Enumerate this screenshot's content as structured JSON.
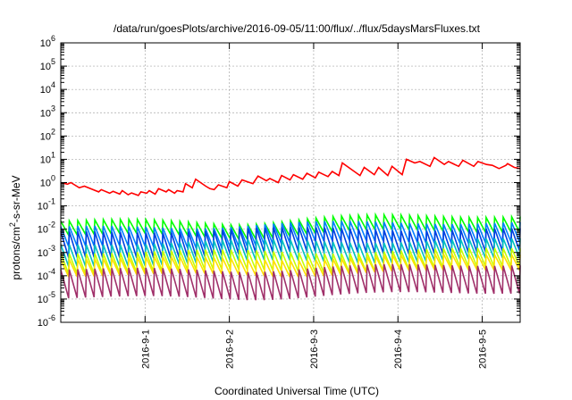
{
  "chart_data": {
    "type": "line",
    "title": "/data/run/goesPlots/archive/2016-09-05/11:00/flux/../flux/5daysMarsFluxes.txt",
    "xlabel": "Coordinated Universal Time (UTC)",
    "ylabel": "protons/cm²-s-sr-MeV",
    "ylabel_parts": {
      "pre": "protons/cm",
      "sup": "2",
      "post": "-s-sr-MeV"
    },
    "x_tick_labels": [
      "2016-9-1",
      "2016-9-2",
      "2016-9-3",
      "2016-9-4",
      "2016-9-5"
    ],
    "xlim_days": [
      0.0,
      5.45
    ],
    "x_tick_days": [
      1,
      2,
      3,
      4,
      5
    ],
    "y_scale": "log",
    "ylim": [
      1e-06,
      1000000.0
    ],
    "y_tick_labels": [
      {
        "base": "10",
        "exp": "-6"
      },
      {
        "base": "10",
        "exp": "-5"
      },
      {
        "base": "10",
        "exp": "-4"
      },
      {
        "base": "10",
        "exp": "-3"
      },
      {
        "base": "10",
        "exp": "-2"
      },
      {
        "base": "10",
        "exp": "-1"
      },
      {
        "base": "10",
        "exp": "0"
      },
      {
        "base": "10",
        "exp": "1"
      },
      {
        "base": "10",
        "exp": "2"
      },
      {
        "base": "10",
        "exp": "3"
      },
      {
        "base": "10",
        "exp": "4"
      },
      {
        "base": "10",
        "exp": "5"
      },
      {
        "base": "10",
        "exp": "6"
      }
    ],
    "grid": true,
    "legend": false,
    "sawtooth_teeth": 54,
    "series": [
      {
        "color": "#ff0000",
        "style": "sawtooth-sparse",
        "points": [
          [
            0.0,
            1.0
          ],
          [
            0.08,
            0.85
          ],
          [
            0.12,
            1.0
          ],
          [
            0.22,
            0.6
          ],
          [
            0.28,
            0.7
          ],
          [
            0.45,
            0.4
          ],
          [
            0.48,
            0.5
          ],
          [
            0.58,
            0.35
          ],
          [
            0.62,
            0.42
          ],
          [
            0.7,
            0.32
          ],
          [
            0.73,
            0.45
          ],
          [
            0.8,
            0.3
          ],
          [
            0.84,
            0.36
          ],
          [
            0.92,
            0.28
          ],
          [
            0.95,
            0.4
          ],
          [
            1.02,
            0.35
          ],
          [
            1.05,
            0.45
          ],
          [
            1.12,
            0.32
          ],
          [
            1.16,
            0.55
          ],
          [
            1.25,
            0.4
          ],
          [
            1.28,
            0.5
          ],
          [
            1.35,
            0.35
          ],
          [
            1.38,
            0.45
          ],
          [
            1.45,
            0.4
          ],
          [
            1.48,
            0.9
          ],
          [
            1.56,
            0.6
          ],
          [
            1.6,
            1.4
          ],
          [
            1.72,
            0.7
          ],
          [
            1.77,
            0.55
          ],
          [
            1.82,
            0.5
          ],
          [
            1.87,
            0.8
          ],
          [
            1.97,
            0.6
          ],
          [
            2.0,
            1.1
          ],
          [
            2.1,
            0.7
          ],
          [
            2.15,
            1.3
          ],
          [
            2.28,
            0.9
          ],
          [
            2.34,
            1.9
          ],
          [
            2.44,
            1.2
          ],
          [
            2.48,
            1.5
          ],
          [
            2.58,
            1.0
          ],
          [
            2.62,
            2.0
          ],
          [
            2.72,
            1.3
          ],
          [
            2.76,
            2.2
          ],
          [
            2.87,
            1.4
          ],
          [
            2.92,
            2.5
          ],
          [
            3.02,
            1.6
          ],
          [
            3.06,
            2.8
          ],
          [
            3.17,
            1.8
          ],
          [
            3.22,
            3.0
          ],
          [
            3.3,
            2.0
          ],
          [
            3.34,
            7.0
          ],
          [
            3.55,
            2.0
          ],
          [
            3.6,
            4.5
          ],
          [
            3.72,
            2.2
          ],
          [
            3.77,
            4.5
          ],
          [
            3.88,
            2.0
          ],
          [
            3.93,
            5.0
          ],
          [
            4.05,
            2.2
          ],
          [
            4.1,
            10.0
          ],
          [
            4.2,
            7.0
          ],
          [
            4.26,
            8.0
          ],
          [
            4.38,
            5.0
          ],
          [
            4.43,
            12.0
          ],
          [
            4.55,
            6.0
          ],
          [
            4.6,
            8.0
          ],
          [
            4.72,
            5.0
          ],
          [
            4.77,
            9.0
          ],
          [
            4.9,
            5.0
          ],
          [
            4.95,
            8.0
          ],
          [
            5.05,
            6.0
          ],
          [
            5.12,
            5.5
          ],
          [
            5.2,
            4.0
          ],
          [
            5.28,
            5.5
          ],
          [
            5.3,
            6.5
          ],
          [
            5.38,
            4.5
          ],
          [
            5.45,
            4.0
          ]
        ]
      },
      {
        "color": "#00ff00",
        "low_start": 0.0055,
        "high_start": 0.022,
        "low_end": 0.008,
        "high_end": 0.035,
        "bump": 0.45
      },
      {
        "color": "#0080ff",
        "low_start": 0.0018,
        "high_start": 0.013,
        "low_end": 0.003,
        "high_end": 0.02,
        "bump": 0.35
      },
      {
        "color": "#0040e0",
        "low_start": 0.0006,
        "high_start": 0.008,
        "low_end": 0.0012,
        "high_end": 0.011,
        "bump": 0.3
      },
      {
        "color": "#00c0c0",
        "low_start": 0.00025,
        "high_start": 0.0022,
        "low_end": 0.0006,
        "high_end": 0.004,
        "bump": 0.3
      },
      {
        "color": "#c8ff00",
        "low_start": 0.00012,
        "high_start": 0.0009,
        "low_end": 0.00025,
        "high_end": 0.0015,
        "bump": 0.3
      },
      {
        "color": "#ffe000",
        "low_start": 9e-05,
        "high_start": 0.0005,
        "low_end": 0.00018,
        "high_end": 0.0008,
        "bump": 0.3
      },
      {
        "color": "#a0306a",
        "low_start": 1.1e-05,
        "high_start": 0.00018,
        "low_end": 1.8e-05,
        "high_end": 0.00028,
        "bump": 0.35
      }
    ]
  }
}
